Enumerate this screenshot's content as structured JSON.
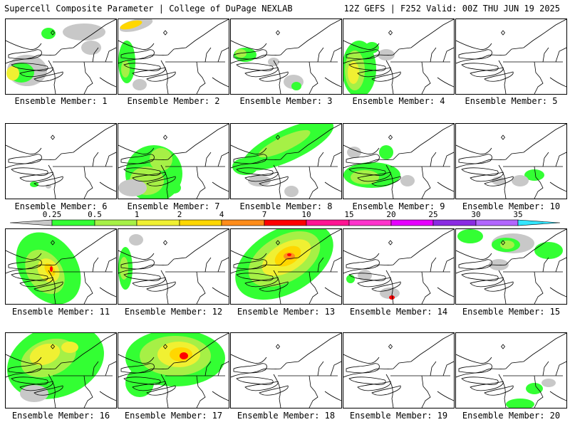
{
  "header": {
    "title": "Supercell Composite Parameter | College of DuPage NEXLAB",
    "run_info": "12Z GEFS | F252 Valid: 00Z THU JUN 19 2025"
  },
  "colorbar": {
    "ticks": [
      "0.25",
      "0.5",
      "1",
      "2",
      "4",
      "7",
      "10",
      "15",
      "20",
      "25",
      "30",
      "35"
    ],
    "colors": [
      "#c8c8c8",
      "#33ff33",
      "#a6f046",
      "#f0f032",
      "#ffd700",
      "#ff8c1a",
      "#ff0000",
      "#ff1493",
      "#ff33cc",
      "#e600ff",
      "#8a2be2",
      "#b266ff",
      "#33e6ff"
    ]
  },
  "panels": [
    {
      "label": "Ensemble Member: 1",
      "member": 1
    },
    {
      "label": "Ensemble Member: 2",
      "member": 2
    },
    {
      "label": "Ensemble Member: 3",
      "member": 3
    },
    {
      "label": "Ensemble Member: 4",
      "member": 4
    },
    {
      "label": "Ensemble Member: 5",
      "member": 5
    },
    {
      "label": "Ensemble Member: 6",
      "member": 6
    },
    {
      "label": "Ensemble Member: 7",
      "member": 7
    },
    {
      "label": "Ensemble Member: 8",
      "member": 8
    },
    {
      "label": "Ensemble Member: 9",
      "member": 9
    },
    {
      "label": "Ensemble Member: 10",
      "member": 10
    },
    {
      "label": "Ensemble Member: 11",
      "member": 11
    },
    {
      "label": "Ensemble Member: 12",
      "member": 12
    },
    {
      "label": "Ensemble Member: 13",
      "member": 13
    },
    {
      "label": "Ensemble Member: 14",
      "member": 14
    },
    {
      "label": "Ensemble Member: 15",
      "member": 15
    },
    {
      "label": "Ensemble Member: 16",
      "member": 16
    },
    {
      "label": "Ensemble Member: 17",
      "member": 17
    },
    {
      "label": "Ensemble Member: 18",
      "member": 18
    },
    {
      "label": "Ensemble Member: 19",
      "member": 19
    },
    {
      "label": "Ensemble Member: 20",
      "member": 20
    }
  ]
}
